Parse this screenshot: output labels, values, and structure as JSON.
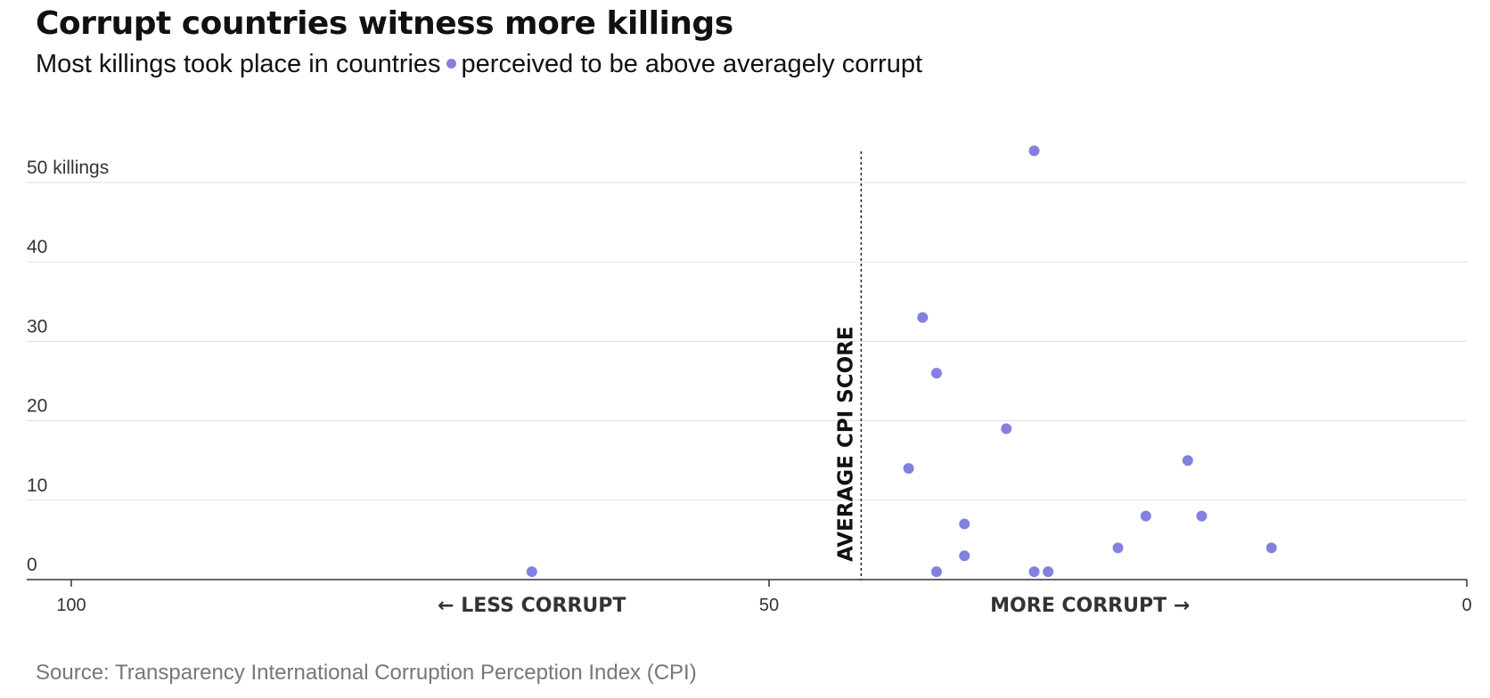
{
  "title": "Corrupt countries witness more killings",
  "subtitle": {
    "before": "Most killings took place in countries",
    "after": "perceived to be above averagely corrupt"
  },
  "source": "Source: Transparency International Corruption Perception Index (CPI)",
  "colors": {
    "dot": "#8480e0",
    "grid": "#dddddd",
    "axis": "#333333",
    "text": "#333333"
  },
  "chart_data": {
    "type": "scatter",
    "xlim": [
      100,
      0
    ],
    "ylim": [
      0,
      50
    ],
    "x_reversed": true,
    "grid": true,
    "x_ticks": [
      {
        "value": 100,
        "label": "100"
      },
      {
        "value": 50,
        "label": "50"
      },
      {
        "value": 0,
        "label": "0"
      }
    ],
    "y_ticks": [
      {
        "value": 0,
        "label": "0"
      },
      {
        "value": 10,
        "label": "10"
      },
      {
        "value": 20,
        "label": "20"
      },
      {
        "value": 30,
        "label": "30"
      },
      {
        "value": 40,
        "label": "40"
      },
      {
        "value": 50,
        "label": "50 killings"
      }
    ],
    "x_annotations": [
      {
        "label": "← LESS CORRUPT",
        "x": 67
      },
      {
        "label": "MORE CORRUPT →",
        "x": 27
      }
    ],
    "reference_line": {
      "x": 43.4,
      "label": "AVERAGE CPI SCORE"
    },
    "points": [
      {
        "x": 67,
        "y": 1
      },
      {
        "x": 40,
        "y": 14
      },
      {
        "x": 39,
        "y": 33
      },
      {
        "x": 38,
        "y": 26
      },
      {
        "x": 38,
        "y": 1
      },
      {
        "x": 36,
        "y": 7
      },
      {
        "x": 36,
        "y": 3
      },
      {
        "x": 33,
        "y": 19
      },
      {
        "x": 31,
        "y": 54
      },
      {
        "x": 31,
        "y": 1
      },
      {
        "x": 30,
        "y": 1
      },
      {
        "x": 25,
        "y": 4
      },
      {
        "x": 23,
        "y": 8
      },
      {
        "x": 20,
        "y": 15
      },
      {
        "x": 19,
        "y": 8
      },
      {
        "x": 14,
        "y": 4
      }
    ]
  }
}
